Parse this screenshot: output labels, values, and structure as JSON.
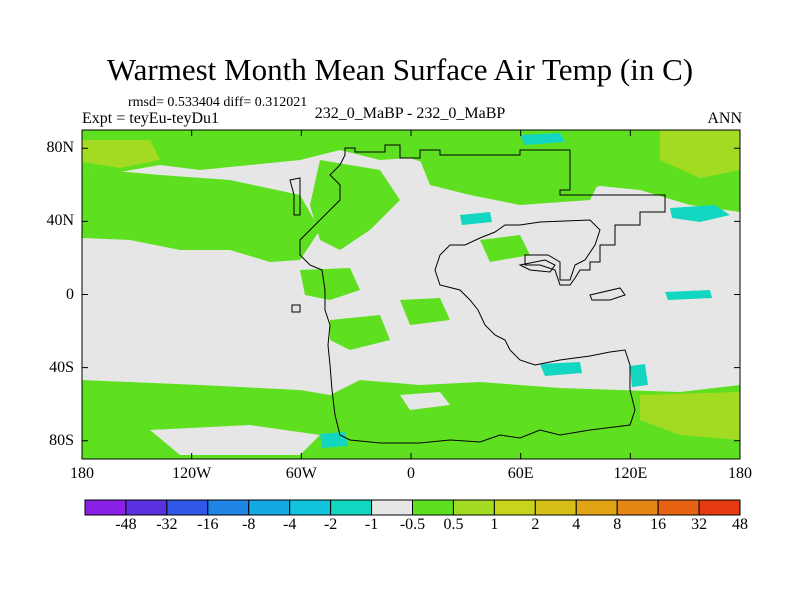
{
  "title": "Warmest Month Mean Surface Air Temp (in C)",
  "stats_line": "rmsd= 0.533404 diff= 0.312021",
  "experiment_label": "Expt = teyEu-teyDu1",
  "comparison_label": "232_0_MaBP - 232_0_MaBP",
  "season_label": "ANN",
  "map": {
    "projection": "cylindrical-equidistant",
    "lon_range": [
      -180,
      180
    ],
    "lat_range": [
      -90,
      90
    ],
    "y_ticks": [
      {
        "value": 80,
        "label": "80N"
      },
      {
        "value": 40,
        "label": "40N"
      },
      {
        "value": 0,
        "label": "0"
      },
      {
        "value": -40,
        "label": "40S"
      },
      {
        "value": -80,
        "label": "80S"
      }
    ],
    "x_ticks": [
      {
        "value": -180,
        "label": "180"
      },
      {
        "value": -120,
        "label": "120W"
      },
      {
        "value": -60,
        "label": "60W"
      },
      {
        "value": 0,
        "label": "0"
      },
      {
        "value": 60,
        "label": "60E"
      },
      {
        "value": 120,
        "label": "120E"
      },
      {
        "value": 180,
        "label": "180"
      }
    ]
  },
  "colorbar": {
    "colors": [
      "#8a1fe6",
      "#5a32e0",
      "#2f58e8",
      "#1e84e6",
      "#14a9e2",
      "#0fc4dc",
      "#12d6c0",
      "#e6e6e6",
      "#5ee020",
      "#a3db22",
      "#c8d41c",
      "#d6bf16",
      "#e0a414",
      "#e68614",
      "#e86214",
      "#e53a12"
    ],
    "labels": [
      "-48",
      "-32",
      "-16",
      "-8",
      "-4",
      "-2",
      "-1",
      "-0.5",
      "0.5",
      "1",
      "2",
      "4",
      "8",
      "16",
      "32",
      "48"
    ]
  }
}
